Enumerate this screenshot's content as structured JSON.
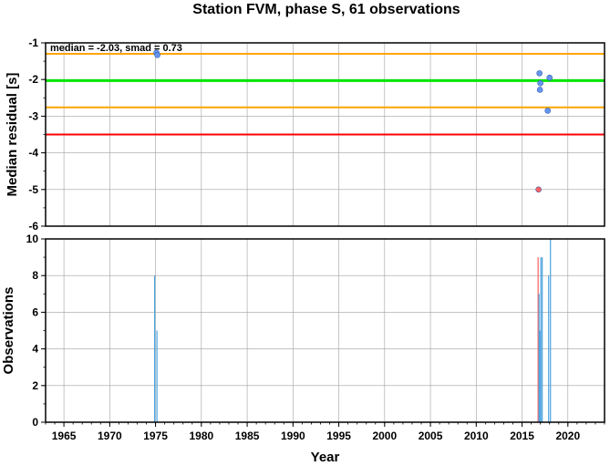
{
  "chart_data": [
    {
      "type": "scatter",
      "title": "Station FVM, phase S, 61 observations",
      "xlabel": "",
      "ylabel": "Median residual [s]",
      "xlim": [
        1963,
        2024
      ],
      "ylim": [
        -6,
        -1
      ],
      "yticks": [
        "-1",
        "-2",
        "-3",
        "-4",
        "-5",
        "-6"
      ],
      "grid": true,
      "annotation": "median = -2.03, smad = 0.73",
      "reference_lines": [
        {
          "label": "median",
          "y": -2.03,
          "color": "#00e600"
        },
        {
          "label": "median+smad",
          "y": -1.3,
          "color": "#ffa500"
        },
        {
          "label": "median-smad",
          "y": -2.76,
          "color": "#ffa500"
        },
        {
          "label": "limit",
          "y": -3.5,
          "color": "#ff0000"
        }
      ],
      "points": [
        {
          "x": 1975.1,
          "y": -1.27,
          "color": "#6495ed"
        },
        {
          "x": 1975.2,
          "y": -1.33,
          "color": "#6495ed"
        },
        {
          "x": 2016.9,
          "y": -1.83,
          "color": "#6495ed"
        },
        {
          "x": 2017.0,
          "y": -2.1,
          "color": "#6495ed"
        },
        {
          "x": 2016.95,
          "y": -2.28,
          "color": "#6495ed"
        },
        {
          "x": 2018.0,
          "y": -1.95,
          "color": "#6495ed"
        },
        {
          "x": 2017.8,
          "y": -2.85,
          "color": "#6495ed"
        },
        {
          "x": 2016.8,
          "y": -5.0,
          "color": "#ff6060"
        }
      ]
    },
    {
      "type": "bar",
      "xlabel": "Year",
      "ylabel": "Observations",
      "xlim": [
        1963,
        2024
      ],
      "ylim": [
        0,
        10
      ],
      "yticks": [
        "0",
        "2",
        "4",
        "6",
        "8",
        "10"
      ],
      "xticks": [
        "1965",
        "1970",
        "1975",
        "1980",
        "1985",
        "1990",
        "1995",
        "2000",
        "2005",
        "2010",
        "2015",
        "2020"
      ],
      "grid": true,
      "bars": [
        {
          "x": 1974.9,
          "value": 8,
          "color": "#4aa3df"
        },
        {
          "x": 1975.15,
          "value": 5,
          "color": "#4aa3df"
        },
        {
          "x": 2016.75,
          "value": 9,
          "color": "#ff6060"
        },
        {
          "x": 2016.85,
          "value": 7,
          "color": "#4aa3df"
        },
        {
          "x": 2016.95,
          "value": 5,
          "color": "#4aa3df"
        },
        {
          "x": 2017.05,
          "value": 9,
          "color": "#4aa3df"
        },
        {
          "x": 2017.2,
          "value": 9,
          "color": "#4aa3df"
        },
        {
          "x": 2017.9,
          "value": 8,
          "color": "#4aa3df"
        },
        {
          "x": 2018.1,
          "value": 10,
          "color": "#4aa3df"
        }
      ]
    }
  ]
}
